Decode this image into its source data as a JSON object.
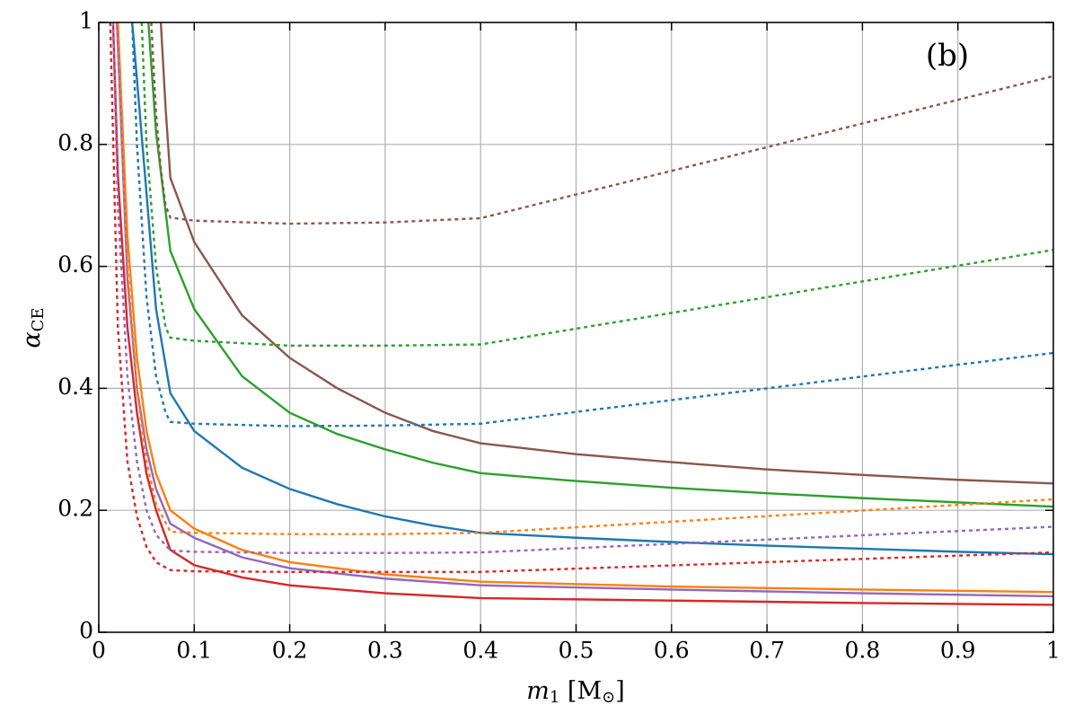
{
  "chart_data": {
    "type": "line",
    "annotation": "(b)",
    "xlabel": [
      "m",
      "1",
      " [M",
      "⊙",
      "]"
    ],
    "ylabel": [
      "α",
      "CE"
    ],
    "xlim": [
      0,
      1
    ],
    "ylim": [
      0,
      1
    ],
    "xticks": [
      0,
      0.1,
      0.2,
      0.3,
      0.4,
      0.5,
      0.6,
      0.7,
      0.8,
      0.9,
      1
    ],
    "yticks": [
      0,
      0.2,
      0.4,
      0.6,
      0.8,
      1
    ],
    "grid": true,
    "series": [
      {
        "color": "#8c564b",
        "style": "solid",
        "x": [
          0.065,
          0.07,
          0.075,
          0.1,
          0.15,
          0.2,
          0.25,
          0.3,
          0.35,
          0.4,
          0.5,
          0.6,
          0.7,
          0.8,
          0.9,
          1
        ],
        "values": [
          1,
          0.86,
          0.745,
          0.64,
          0.52,
          0.45,
          0.4,
          0.36,
          0.33,
          0.31,
          0.292,
          0.279,
          0.267,
          0.258,
          0.25,
          0.244
        ]
      },
      {
        "color": "#2ca02c",
        "style": "solid",
        "x": [
          0.052,
          0.06,
          0.075,
          0.1,
          0.15,
          0.2,
          0.25,
          0.3,
          0.35,
          0.4,
          0.5,
          0.6,
          0.7,
          0.8,
          0.9,
          1
        ],
        "values": [
          1,
          0.82,
          0.625,
          0.53,
          0.42,
          0.36,
          0.325,
          0.3,
          0.278,
          0.261,
          0.248,
          0.237,
          0.228,
          0.22,
          0.213,
          0.206
        ]
      },
      {
        "color": "#1f77b4",
        "style": "solid",
        "x": [
          0.035,
          0.05,
          0.06,
          0.075,
          0.1,
          0.15,
          0.2,
          0.25,
          0.3,
          0.35,
          0.4,
          0.5,
          0.6,
          0.7,
          0.8,
          0.9,
          1
        ],
        "values": [
          1,
          0.72,
          0.53,
          0.392,
          0.33,
          0.27,
          0.235,
          0.21,
          0.19,
          0.175,
          0.163,
          0.155,
          0.148,
          0.142,
          0.137,
          0.132,
          0.128
        ]
      },
      {
        "color": "#ff7f0e",
        "style": "solid",
        "x": [
          0.02,
          0.03,
          0.04,
          0.05,
          0.06,
          0.075,
          0.1,
          0.15,
          0.2,
          0.3,
          0.4,
          0.6,
          0.8,
          1
        ],
        "values": [
          1,
          0.65,
          0.45,
          0.33,
          0.26,
          0.2,
          0.17,
          0.135,
          0.115,
          0.095,
          0.083,
          0.075,
          0.07,
          0.066
        ]
      },
      {
        "color": "#9467bd",
        "style": "solid",
        "x": [
          0.019,
          0.03,
          0.04,
          0.05,
          0.06,
          0.075,
          0.1,
          0.15,
          0.2,
          0.3,
          0.4,
          0.6,
          0.8,
          1
        ],
        "values": [
          1,
          0.58,
          0.4,
          0.3,
          0.235,
          0.178,
          0.155,
          0.123,
          0.105,
          0.088,
          0.077,
          0.07,
          0.064,
          0.059
        ]
      },
      {
        "color": "#d62728",
        "style": "solid",
        "x": [
          0.015,
          0.02,
          0.03,
          0.04,
          0.05,
          0.06,
          0.075,
          0.1,
          0.15,
          0.2,
          0.3,
          0.4,
          0.6,
          0.8,
          1
        ],
        "values": [
          1,
          0.75,
          0.5,
          0.36,
          0.26,
          0.2,
          0.135,
          0.11,
          0.09,
          0.077,
          0.064,
          0.056,
          0.052,
          0.048,
          0.045
        ]
      },
      {
        "color": "#8c564b",
        "style": "dotted",
        "x": [
          0.055,
          0.06,
          0.065,
          0.07,
          0.075,
          0.1,
          0.2,
          0.3,
          0.4,
          1
        ],
        "values": [
          1,
          0.85,
          0.76,
          0.7,
          0.68,
          0.675,
          0.67,
          0.672,
          0.679,
          0.912
        ]
      },
      {
        "color": "#2ca02c",
        "style": "dotted",
        "x": [
          0.045,
          0.05,
          0.06,
          0.07,
          0.075,
          0.1,
          0.2,
          0.3,
          0.4,
          1
        ],
        "values": [
          1,
          0.8,
          0.6,
          0.5,
          0.483,
          0.478,
          0.47,
          0.47,
          0.472,
          0.627
        ]
      },
      {
        "color": "#1f77b4",
        "style": "dotted",
        "x": [
          0.035,
          0.04,
          0.05,
          0.06,
          0.07,
          0.075,
          0.1,
          0.2,
          0.3,
          0.4,
          1
        ],
        "values": [
          1,
          0.8,
          0.55,
          0.42,
          0.36,
          0.345,
          0.342,
          0.338,
          0.339,
          0.342,
          0.458
        ]
      },
      {
        "color": "#ff7f0e",
        "style": "dotted",
        "x": [
          0.02,
          0.03,
          0.04,
          0.05,
          0.06,
          0.075,
          0.1,
          0.2,
          0.3,
          0.4,
          1
        ],
        "values": [
          1,
          0.6,
          0.4,
          0.28,
          0.21,
          0.165,
          0.163,
          0.161,
          0.161,
          0.163,
          0.218
        ]
      },
      {
        "color": "#9467bd",
        "style": "dotted",
        "x": [
          0.015,
          0.02,
          0.03,
          0.04,
          0.05,
          0.06,
          0.075,
          0.1,
          0.2,
          0.3,
          0.4,
          1
        ],
        "values": [
          1,
          0.7,
          0.42,
          0.28,
          0.2,
          0.16,
          0.134,
          0.132,
          0.13,
          0.13,
          0.131,
          0.173
        ]
      },
      {
        "color": "#d62728",
        "style": "dotted",
        "x": [
          0.012,
          0.02,
          0.03,
          0.04,
          0.05,
          0.06,
          0.075,
          0.1,
          0.2,
          0.3,
          0.4,
          1
        ],
        "values": [
          1,
          0.5,
          0.28,
          0.19,
          0.14,
          0.115,
          0.102,
          0.1,
          0.099,
          0.099,
          0.099,
          0.131
        ]
      }
    ]
  }
}
